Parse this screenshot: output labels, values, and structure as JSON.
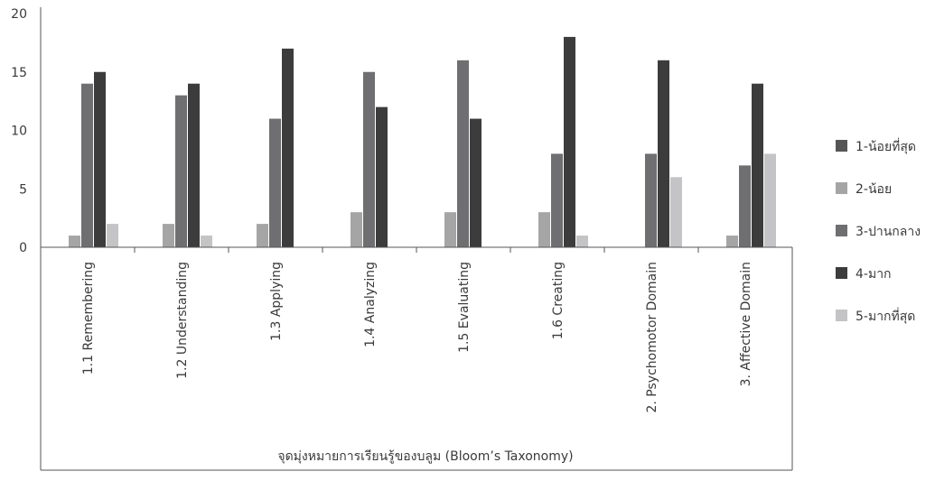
{
  "chart_data": {
    "type": "bar",
    "categories": [
      "1.1 Remembering",
      "1.2 Understanding",
      "1.3 Applying",
      "1.4 Analyzing",
      "1.5 Evaluating",
      "1.6 Creating",
      "2. Psychomotor Domain",
      "3. Affective Domain"
    ],
    "series": [
      {
        "name": "1-น้อยที่สุด",
        "color": "#555555",
        "values": [
          0,
          0,
          0,
          0,
          0,
          0,
          0,
          0
        ]
      },
      {
        "name": "2-น้อย",
        "color": "#a5a5a5",
        "values": [
          1,
          2,
          2,
          3,
          3,
          3,
          0,
          1
        ]
      },
      {
        "name": "3-ปานกลาง",
        "color": "#6f6f71",
        "values": [
          14,
          13,
          11,
          15,
          16,
          8,
          8,
          7
        ]
      },
      {
        "name": "4-มาก",
        "color": "#3c3c3c",
        "values": [
          15,
          14,
          17,
          12,
          11,
          18,
          16,
          14
        ]
      },
      {
        "name": "5-มากที่สุด",
        "color": "#c4c4c6",
        "values": [
          2,
          1,
          0,
          0,
          0,
          1,
          6,
          8
        ]
      }
    ],
    "yticks": [
      "0",
      "5",
      "10",
      "15",
      "20"
    ],
    "ylim": [
      0,
      20
    ],
    "xlabel": "จุดมุ่งหมายการเรียนรู้ของบลูม (Bloom’s Taxonomy)",
    "ylabel": "",
    "grid": false,
    "legend_position": "right"
  }
}
